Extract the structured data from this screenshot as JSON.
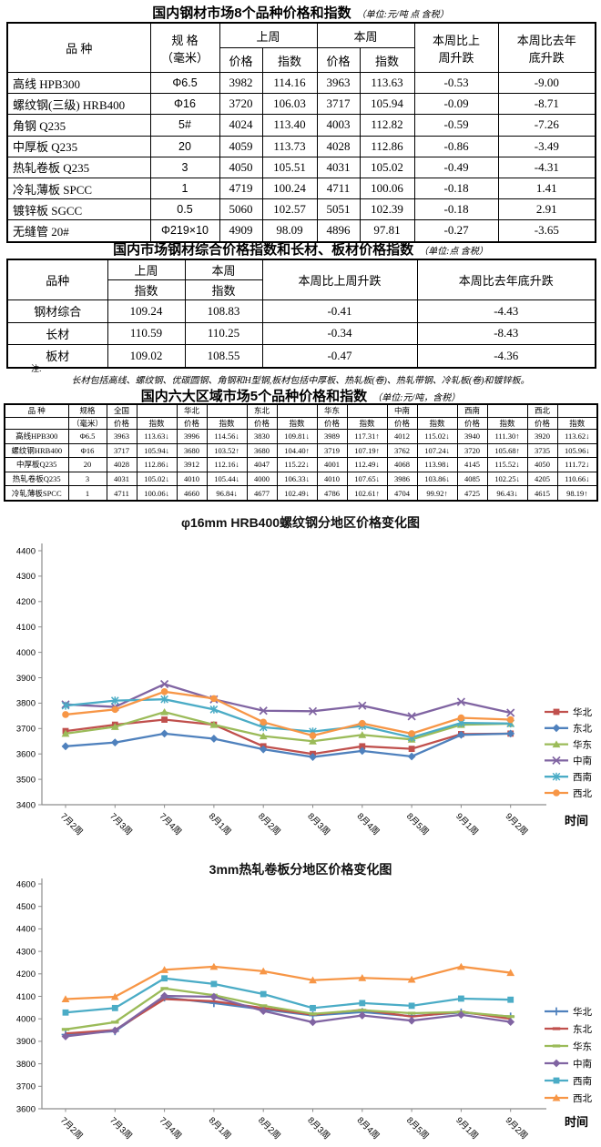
{
  "table1": {
    "title": "国内钢材市场8个品种价格和指数",
    "unit": "（单位:元/吨 点 含税）",
    "headers": {
      "product": "品    种",
      "spec_l1": "规    格",
      "spec_l2": "（毫米）",
      "last": "上周",
      "this": "本周",
      "price": "价格",
      "index": "指数",
      "wow_l1": "本周比上",
      "wow_l2": "周升跌",
      "ytd_l1": "本周比去年",
      "ytd_l2": "底升跌"
    },
    "rows": [
      {
        "name": "高线 HPB300",
        "spec": "Φ6.5",
        "last_price": "3982",
        "last_index": "114.16",
        "this_price": "3963",
        "this_index": "113.63",
        "wow": "-0.53",
        "ytd": "-9.00"
      },
      {
        "name": "螺纹钢(三级) HRB400",
        "spec": "Φ16",
        "last_price": "3720",
        "last_index": "106.03",
        "this_price": "3717",
        "this_index": "105.94",
        "wow": "-0.09",
        "ytd": "-8.71"
      },
      {
        "name": "角钢 Q235",
        "spec": "5#",
        "last_price": "4024",
        "last_index": "113.40",
        "this_price": "4003",
        "this_index": "112.82",
        "wow": "-0.59",
        "ytd": "-7.26"
      },
      {
        "name": "中厚板 Q235",
        "spec": "20",
        "last_price": "4059",
        "last_index": "113.73",
        "this_price": "4028",
        "this_index": "112.86",
        "wow": "-0.86",
        "ytd": "-3.49"
      },
      {
        "name": "热轧卷板 Q235",
        "spec": "3",
        "last_price": "4050",
        "last_index": "105.51",
        "this_price": "4031",
        "this_index": "105.02",
        "wow": "-0.49",
        "ytd": "-4.31"
      },
      {
        "name": "冷轧薄板 SPCC",
        "spec": "1",
        "last_price": "4719",
        "last_index": "100.24",
        "this_price": "4711",
        "this_index": "100.06",
        "wow": "-0.18",
        "ytd": "1.41"
      },
      {
        "name": "镀锌板 SGCC",
        "spec": "0.5",
        "last_price": "5060",
        "last_index": "102.57",
        "this_price": "5051",
        "this_index": "102.39",
        "wow": "-0.18",
        "ytd": "2.91"
      },
      {
        "name": "无缝管 20#",
        "spec": "Φ219×10",
        "last_price": "4909",
        "last_index": "98.09",
        "this_price": "4896",
        "this_index": "97.81",
        "wow": "-0.27",
        "ytd": "-3.65"
      }
    ]
  },
  "table2": {
    "title": "国内市场钢材综合价格指数和长材、板材价格指数",
    "unit": "（单位:点 含税）",
    "headers": {
      "product": "品种",
      "last": "上周",
      "this": "本周",
      "index": "指数",
      "wow": "本周比上周升跌",
      "ytd": "本周比去年底升跌"
    },
    "rows": [
      {
        "name": "钢材综合",
        "last_index": "109.24",
        "this_index": "108.83",
        "wow": "-0.41",
        "ytd": "-4.43"
      },
      {
        "name": "长材",
        "last_index": "110.59",
        "this_index": "110.25",
        "wow": "-0.34",
        "ytd": "-8.43"
      },
      {
        "name": "板材",
        "last_index": "109.02",
        "this_index": "108.55",
        "wow": "-0.47",
        "ytd": "-4.36"
      }
    ]
  },
  "note": {
    "mark": "注:",
    "text": "长材包括高线、螺纹钢、优碳圆钢、角钢和H型钢,板材包括中厚板、热轧板(卷)、热轧带钢、冷轧板(卷)和镀锌板。"
  },
  "table3": {
    "title": "国内六大区域市场5个品种价格和指数",
    "unit": "（单位:元/吨，含税）",
    "headers": {
      "product": "品    种",
      "spec_l1": "规格",
      "spec_l2": "（毫米）",
      "price": "价格",
      "index": "指数"
    },
    "regions": [
      "全国",
      "华北",
      "东北",
      "华东",
      "中南",
      "西南",
      "西北"
    ],
    "rows": [
      {
        "name": "高线HPB300",
        "spec": "Φ6.5",
        "cells": [
          "3963",
          "113.63↓",
          "3996",
          "114.56↓",
          "3830",
          "109.81↓",
          "3989",
          "117.31↑",
          "4012",
          "115.02↓",
          "3940",
          "111.30↑",
          "3920",
          "113.62↓"
        ]
      },
      {
        "name": "螺纹钢HRB400",
        "spec": "Φ16",
        "cells": [
          "3717",
          "105.94↓",
          "3680",
          "103.52↑",
          "3680",
          "104.40↑",
          "3719",
          "107.19↑",
          "3762",
          "107.24↓",
          "3720",
          "105.68↑",
          "3735",
          "105.96↓"
        ]
      },
      {
        "name": "中厚板Q235",
        "spec": "20",
        "cells": [
          "4028",
          "112.86↓",
          "3912",
          "112.16↓",
          "4047",
          "115.22↓",
          "4001",
          "112.49↓",
          "4068",
          "113.98↓",
          "4145",
          "115.52↓",
          "4050",
          "111.72↓"
        ]
      },
      {
        "name": "热轧卷板Q235",
        "spec": "3",
        "cells": [
          "4031",
          "105.02↓",
          "4010",
          "105.44↓",
          "4000",
          "106.33↓",
          "4010",
          "107.65↓",
          "3986",
          "103.86↓",
          "4085",
          "102.25↓",
          "4205",
          "110.66↓"
        ]
      },
      {
        "name": "冷轧薄板SPCC",
        "spec": "1",
        "cells": [
          "4711",
          "100.06↓",
          "4660",
          "96.84↓",
          "4677",
          "102.49↓",
          "4786",
          "102.61↑",
          "4704",
          "99.92↑",
          "4725",
          "96.43↓",
          "4615",
          "98.19↑"
        ]
      }
    ]
  },
  "chart_data": [
    {
      "type": "line",
      "title": "φ16mm HRB400螺纹钢分地区价格变化图",
      "xlabel": "时间",
      "ylim": [
        3400,
        4400
      ],
      "ystep": 100,
      "grid": false,
      "legend_position": "right",
      "categories": [
        "7月2周",
        "7月3周",
        "7月4周",
        "8月1周",
        "8月2周",
        "8月3周",
        "8月4周",
        "8月5周",
        "9月1周",
        "9月2周"
      ],
      "series": [
        {
          "name": "华北",
          "color": "#C0504D",
          "marker": "square",
          "values": [
            3690,
            3715,
            3735,
            3715,
            3630,
            3600,
            3630,
            3620,
            3678,
            3680
          ]
        },
        {
          "name": "东北",
          "color": "#4F81BD",
          "marker": "diamond",
          "values": [
            3630,
            3645,
            3680,
            3660,
            3618,
            3588,
            3612,
            3590,
            3675,
            3680
          ]
        },
        {
          "name": "华东",
          "color": "#9BBB59",
          "marker": "triangle",
          "values": [
            3680,
            3707,
            3765,
            3715,
            3670,
            3650,
            3675,
            3657,
            3715,
            3719
          ]
        },
        {
          "name": "中南",
          "color": "#8064A2",
          "marker": "x",
          "values": [
            3795,
            3785,
            3875,
            3815,
            3770,
            3768,
            3790,
            3748,
            3805,
            3762
          ]
        },
        {
          "name": "西南",
          "color": "#4BACC6",
          "marker": "star",
          "values": [
            3790,
            3810,
            3815,
            3775,
            3705,
            3688,
            3710,
            3665,
            3722,
            3720
          ]
        },
        {
          "name": "西北",
          "color": "#F79646",
          "marker": "circle",
          "values": [
            3755,
            3775,
            3845,
            3818,
            3725,
            3672,
            3720,
            3680,
            3742,
            3735
          ]
        }
      ]
    },
    {
      "type": "line",
      "title": "3mm热轧卷板分地区价格变化图",
      "xlabel": "时间",
      "ylim": [
        3600,
        4600
      ],
      "ystep": 100,
      "grid": false,
      "legend_position": "right",
      "categories": [
        "7月2周",
        "7月3周",
        "7月4周",
        "8月1周",
        "8月2周",
        "8月3周",
        "8月4周",
        "8月5周",
        "9月1周",
        "9月2周"
      ],
      "series": [
        {
          "name": "华北",
          "color": "#4F81BD",
          "marker": "plus",
          "values": [
            3930,
            3945,
            4095,
            4070,
            4042,
            4015,
            4030,
            4012,
            4028,
            4010
          ]
        },
        {
          "name": "东北",
          "color": "#C0504D",
          "marker": "none",
          "values": [
            3935,
            3950,
            4088,
            4078,
            4048,
            4018,
            4040,
            4010,
            4032,
            4000
          ]
        },
        {
          "name": "华东",
          "color": "#9BBB59",
          "marker": "dash",
          "values": [
            3953,
            3985,
            4135,
            4105,
            4058,
            4022,
            4038,
            4025,
            4030,
            4010
          ]
        },
        {
          "name": "中南",
          "color": "#8064A2",
          "marker": "diamond",
          "values": [
            3922,
            3948,
            4102,
            4098,
            4035,
            3985,
            4015,
            3992,
            4018,
            3986
          ]
        },
        {
          "name": "西南",
          "color": "#4BACC6",
          "marker": "square",
          "values": [
            4028,
            4048,
            4180,
            4155,
            4110,
            4048,
            4070,
            4058,
            4090,
            4085
          ]
        },
        {
          "name": "西北",
          "color": "#F79646",
          "marker": "triangle",
          "values": [
            4088,
            4098,
            4218,
            4232,
            4212,
            4172,
            4182,
            4175,
            4232,
            4205
          ]
        }
      ]
    }
  ]
}
